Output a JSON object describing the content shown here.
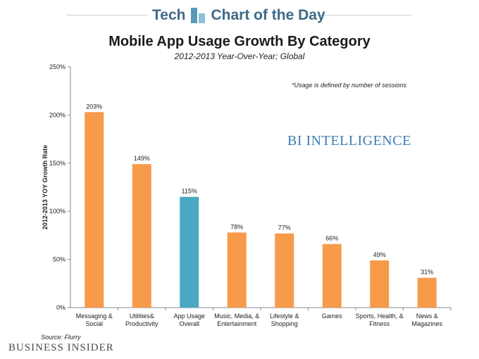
{
  "header": {
    "section": "Tech",
    "series_name": "Chart of the Day"
  },
  "chart_data": {
    "type": "bar",
    "title": "Mobile App Usage Growth By Category",
    "subtitle": "2012-2013 Year-Over-Year; Global",
    "ylabel": "2012-2013 YOY Growth Rate",
    "xlabel": "",
    "ylim": [
      0,
      250
    ],
    "yticks": [
      "0%",
      "50%",
      "100%",
      "150%",
      "200%",
      "250%"
    ],
    "categories": [
      [
        "Messaging &",
        "Social"
      ],
      [
        "Utilities&",
        "Productivity"
      ],
      [
        "App Usage",
        "Overall"
      ],
      [
        "Music, Media, &",
        "Entertainment"
      ],
      [
        "Lifestyle &",
        "Shopping"
      ],
      [
        "Games"
      ],
      [
        "Sports, Health, &",
        "Fitness"
      ],
      [
        "News &",
        "Magazines"
      ]
    ],
    "values": [
      203,
      149,
      115,
      78,
      77,
      66,
      49,
      31
    ],
    "value_labels": [
      "203%",
      "149%",
      "115%",
      "78%",
      "77%",
      "66%",
      "49%",
      "31%"
    ],
    "highlight_index": 2,
    "colors": {
      "default": "#f79a4a",
      "highlight": "#4aa8c3"
    },
    "grid": false,
    "note": "*Usage is defined by number of sessions",
    "watermark": "BI INTELLIGENCE"
  },
  "footer": {
    "source": "Source: Flurry",
    "logo": "BUSINESS INSIDER"
  }
}
